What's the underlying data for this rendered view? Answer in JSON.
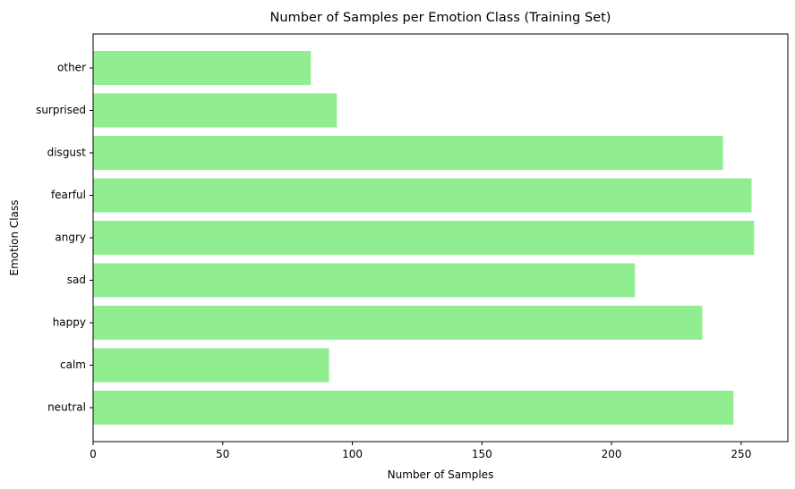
{
  "chart_data": {
    "type": "bar",
    "orientation": "horizontal",
    "title": "Number of Samples per Emotion Class (Training Set)",
    "xlabel": "Number of Samples",
    "ylabel": "Emotion Class",
    "categories": [
      "neutral",
      "calm",
      "happy",
      "sad",
      "angry",
      "fearful",
      "disgust",
      "surprised",
      "other"
    ],
    "values": [
      247,
      91,
      235,
      209,
      255,
      254,
      243,
      94,
      84
    ],
    "xlim": [
      0,
      268
    ],
    "xticks": [
      0,
      50,
      100,
      150,
      200,
      250
    ],
    "grid": false,
    "bar_color": "#90ee90"
  }
}
